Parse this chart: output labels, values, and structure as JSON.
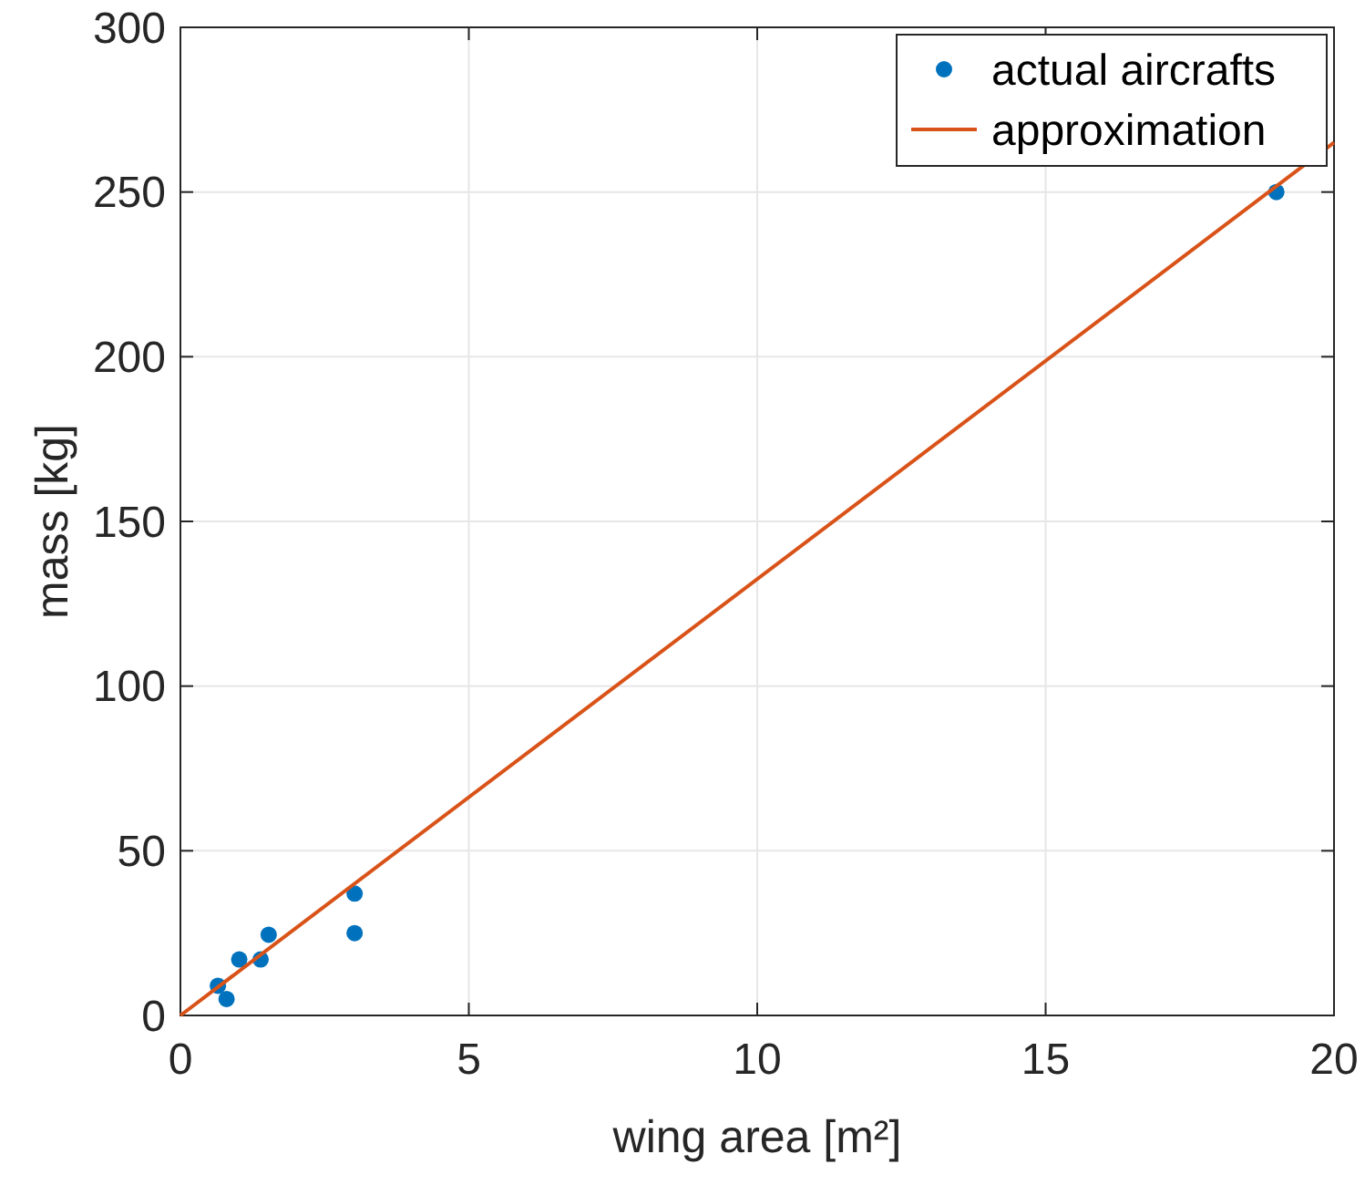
{
  "chart_data": {
    "type": "scatter",
    "xlabel": "wing area [m²]",
    "ylabel": "mass [kg]",
    "xlim": [
      0,
      20
    ],
    "ylim": [
      0,
      300
    ],
    "xticks": [
      0,
      5,
      10,
      15,
      20
    ],
    "yticks": [
      0,
      50,
      100,
      150,
      200,
      250,
      300
    ],
    "grid": true,
    "legend": "top right",
    "series": [
      {
        "name": "actual aircrafts",
        "color": "#0072bd",
        "marker": "circle",
        "x": [
          0.65,
          0.8,
          1.02,
          1.39,
          1.53,
          3.02,
          3.02,
          19.0
        ],
        "values": [
          9,
          5,
          17,
          17,
          24.5,
          37,
          25,
          250
        ]
      },
      {
        "name": "approximation",
        "type": "line",
        "color": "#d95319",
        "line_style": "solid",
        "x": [
          0,
          20
        ],
        "values": [
          0,
          265
        ]
      }
    ]
  }
}
